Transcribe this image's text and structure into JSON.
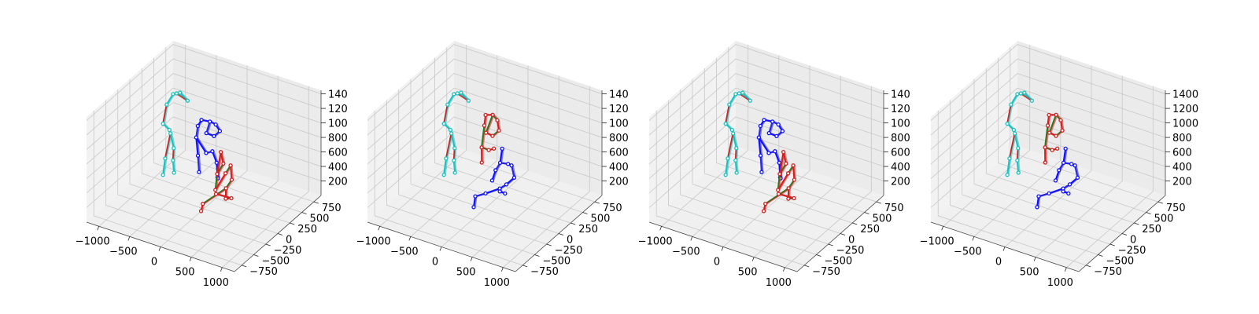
{
  "chart_data": [
    {
      "type": "scatter",
      "title": "",
      "x_ticks": [
        "−1000",
        "−500",
        "0",
        "500",
        "1000"
      ],
      "y_ticks": [
        "750",
        "500",
        "250",
        "0",
        "−250",
        "−500",
        "−750"
      ],
      "z_ticks": [
        "140",
        "120",
        "100",
        "800",
        "600",
        "400",
        "200"
      ],
      "skeletons": [
        {
          "name": "",
          "colors": [
            "#d02020",
            "#20c0c0"
          ],
          "joints": [
            [
              -620,
              300,
              1250
            ],
            [
              -520,
              330,
              1150
            ],
            [
              -700,
              330,
              1200
            ],
            [
              -780,
              360,
              1150
            ],
            [
              -860,
              330,
              1000
            ],
            [
              -880,
              280,
              760
            ],
            [
              -760,
              260,
              720
            ],
            [
              -720,
              230,
              700
            ],
            [
              -660,
              220,
              520
            ],
            [
              -640,
              180,
              380
            ],
            [
              -600,
              150,
              240
            ],
            [
              -720,
              120,
              420
            ],
            [
              -740,
              100,
              200
            ]
          ]
        },
        {
          "name": "",
          "colors": [
            "#3030d0",
            "#1010ff"
          ],
          "joints": [
            [
              -100,
              80,
              1150
            ],
            [
              20,
              100,
              1150
            ],
            [
              100,
              120,
              1120
            ],
            [
              120,
              180,
              1000
            ],
            [
              40,
              160,
              920
            ],
            [
              -60,
              130,
              950
            ],
            [
              -160,
              80,
              1050
            ],
            [
              -170,
              60,
              900
            ],
            [
              -150,
              70,
              650
            ],
            [
              -140,
              80,
              420
            ],
            [
              -40,
              100,
              700
            ],
            [
              30,
              140,
              720
            ],
            [
              60,
              190,
              540
            ],
            [
              50,
              220,
              320
            ],
            [
              90,
              180,
              340
            ]
          ]
        },
        {
          "name": "",
          "colors": [
            "#208020",
            "#d02020"
          ],
          "joints": [
            [
              120,
              200,
              700
            ],
            [
              130,
              240,
              520
            ],
            [
              60,
              200,
              380
            ],
            [
              40,
              190,
              160
            ],
            [
              150,
              260,
              380
            ],
            [
              240,
              250,
              520
            ],
            [
              250,
              260,
              320
            ],
            [
              180,
              230,
              200
            ],
            [
              200,
              200,
              80
            ],
            [
              260,
              240,
              80
            ],
            [
              120,
              100,
              180
            ],
            [
              -40,
              30,
              40
            ],
            [
              -60,
              20,
              -60
            ]
          ]
        }
      ]
    },
    {
      "type": "scatter",
      "title": "",
      "x_ticks": [
        "−1000",
        "−500",
        "0",
        "500",
        "1000"
      ],
      "y_ticks": [
        "750",
        "500",
        "250",
        "0",
        "−250",
        "−500",
        "−750"
      ],
      "z_ticks": [
        "140",
        "120",
        "100",
        "800",
        "600",
        "400",
        "200"
      ],
      "skeletons": [
        {
          "name": "",
          "colors": [
            "#d02020",
            "#20c0c0"
          ],
          "joints": [
            [
              -620,
              300,
              1250
            ],
            [
              -520,
              330,
              1150
            ],
            [
              -700,
              330,
              1200
            ],
            [
              -780,
              360,
              1150
            ],
            [
              -860,
              330,
              1000
            ],
            [
              -880,
              280,
              760
            ],
            [
              -760,
              260,
              720
            ],
            [
              -720,
              230,
              700
            ],
            [
              -660,
              220,
              520
            ],
            [
              -640,
              180,
              380
            ],
            [
              -600,
              150,
              240
            ],
            [
              -720,
              120,
              420
            ],
            [
              -740,
              100,
              200
            ]
          ]
        },
        {
          "name": "",
          "colors": [
            "#208020",
            "#d02020"
          ],
          "joints": [
            [
              -80,
              120,
              1200
            ],
            [
              20,
              140,
              1220
            ],
            [
              80,
              160,
              1150
            ],
            [
              90,
              180,
              1000
            ],
            [
              10,
              150,
              920
            ],
            [
              -80,
              130,
              950
            ],
            [
              -100,
              120,
              1050
            ],
            [
              -120,
              90,
              760
            ],
            [
              -110,
              80,
              560
            ],
            [
              -20,
              110,
              740
            ],
            [
              40,
              140,
              760
            ]
          ]
        },
        {
          "name": "",
          "colors": [
            "#3030d0",
            "#1010ff"
          ],
          "joints": [
            [
              80,
              260,
              700
            ],
            [
              70,
              230,
              520
            ],
            [
              20,
              200,
              420
            ],
            [
              -20,
              180,
              280
            ],
            [
              160,
              280,
              500
            ],
            [
              240,
              250,
              520
            ],
            [
              260,
              280,
              340
            ],
            [
              180,
              220,
              260
            ],
            [
              80,
              210,
              180
            ],
            [
              -80,
              120,
              120
            ],
            [
              -200,
              60,
              80
            ],
            [
              -210,
              40,
              -60
            ],
            [
              120,
              160,
              180
            ],
            [
              190,
              180,
              160
            ]
          ]
        }
      ]
    },
    {
      "type": "scatter",
      "title": "",
      "x_ticks": [
        "−1000",
        "−500",
        "0",
        "500",
        "1000"
      ],
      "y_ticks": [
        "750",
        "500",
        "250",
        "0",
        "−250",
        "−500",
        "−750"
      ],
      "z_ticks": [
        "140",
        "120",
        "100",
        "800",
        "600",
        "400",
        "200"
      ],
      "skeletons": [
        {
          "name": "",
          "colors": [
            "#d02020",
            "#20c0c0"
          ],
          "joints": [
            [
              -620,
              300,
              1250
            ],
            [
              -520,
              330,
              1150
            ],
            [
              -700,
              330,
              1200
            ],
            [
              -780,
              360,
              1150
            ],
            [
              -860,
              330,
              1000
            ],
            [
              -880,
              280,
              760
            ],
            [
              -760,
              260,
              720
            ],
            [
              -720,
              230,
              700
            ],
            [
              -660,
              220,
              520
            ],
            [
              -640,
              180,
              380
            ],
            [
              -600,
              150,
              240
            ],
            [
              -720,
              120,
              420
            ],
            [
              -740,
              100,
              200
            ]
          ]
        },
        {
          "name": "",
          "colors": [
            "#3030d0",
            "#1010ff"
          ],
          "joints": [
            [
              -100,
              80,
              1150
            ],
            [
              20,
              100,
              1150
            ],
            [
              100,
              120,
              1120
            ],
            [
              120,
              180,
              1000
            ],
            [
              40,
              160,
              920
            ],
            [
              -60,
              130,
              950
            ],
            [
              -160,
              80,
              1050
            ],
            [
              -170,
              60,
              900
            ],
            [
              -150,
              70,
              650
            ],
            [
              -140,
              80,
              420
            ],
            [
              -40,
              100,
              700
            ],
            [
              30,
              140,
              720
            ],
            [
              60,
              190,
              540
            ],
            [
              50,
              220,
              320
            ],
            [
              90,
              180,
              340
            ]
          ]
        },
        {
          "name": "",
          "colors": [
            "#208020",
            "#d02020"
          ],
          "joints": [
            [
              120,
              200,
              700
            ],
            [
              130,
              240,
              520
            ],
            [
              60,
              200,
              380
            ],
            [
              40,
              190,
              160
            ],
            [
              150,
              260,
              380
            ],
            [
              240,
              250,
              520
            ],
            [
              250,
              260,
              320
            ],
            [
              180,
              230,
              200
            ],
            [
              200,
              200,
              80
            ],
            [
              260,
              240,
              80
            ],
            [
              120,
              100,
              180
            ],
            [
              -40,
              30,
              40
            ],
            [
              -60,
              20,
              -60
            ]
          ]
        }
      ]
    },
    {
      "type": "scatter",
      "title": "",
      "x_ticks": [
        "−1000",
        "−500",
        "0",
        "500",
        "1000"
      ],
      "y_ticks": [
        "750",
        "500",
        "250",
        "0",
        "−250",
        "−500",
        "−750"
      ],
      "z_ticks": [
        "1400",
        "1200",
        "1000",
        "800",
        "600",
        "400",
        "200"
      ],
      "skeletons": [
        {
          "name": "",
          "colors": [
            "#d02020",
            "#20c0c0"
          ],
          "joints": [
            [
              -620,
              300,
              1250
            ],
            [
              -520,
              330,
              1150
            ],
            [
              -700,
              330,
              1200
            ],
            [
              -780,
              360,
              1150
            ],
            [
              -860,
              330,
              1000
            ],
            [
              -880,
              280,
              760
            ],
            [
              -760,
              260,
              720
            ],
            [
              -720,
              230,
              700
            ],
            [
              -660,
              220,
              520
            ],
            [
              -640,
              180,
              380
            ],
            [
              -600,
              150,
              240
            ],
            [
              -720,
              120,
              420
            ],
            [
              -740,
              100,
              200
            ]
          ]
        },
        {
          "name": "",
          "colors": [
            "#208020",
            "#d02020"
          ],
          "joints": [
            [
              -80,
              120,
              1200
            ],
            [
              20,
              140,
              1220
            ],
            [
              80,
              160,
              1150
            ],
            [
              90,
              180,
              1000
            ],
            [
              10,
              150,
              920
            ],
            [
              -80,
              130,
              950
            ],
            [
              -100,
              120,
              1050
            ],
            [
              -120,
              90,
              760
            ],
            [
              -110,
              80,
              560
            ],
            [
              -20,
              110,
              740
            ],
            [
              40,
              140,
              760
            ]
          ]
        },
        {
          "name": "",
          "colors": [
            "#3030d0",
            "#1010ff"
          ],
          "joints": [
            [
              80,
              260,
              700
            ],
            [
              70,
              230,
              520
            ],
            [
              20,
              200,
              420
            ],
            [
              -20,
              180,
              280
            ],
            [
              160,
              280,
              500
            ],
            [
              240,
              250,
              520
            ],
            [
              260,
              280,
              340
            ],
            [
              180,
              220,
              260
            ],
            [
              80,
              210,
              180
            ],
            [
              -80,
              120,
              120
            ],
            [
              -200,
              60,
              80
            ],
            [
              -210,
              40,
              -60
            ],
            [
              120,
              160,
              180
            ],
            [
              190,
              180,
              160
            ]
          ]
        }
      ]
    }
  ]
}
